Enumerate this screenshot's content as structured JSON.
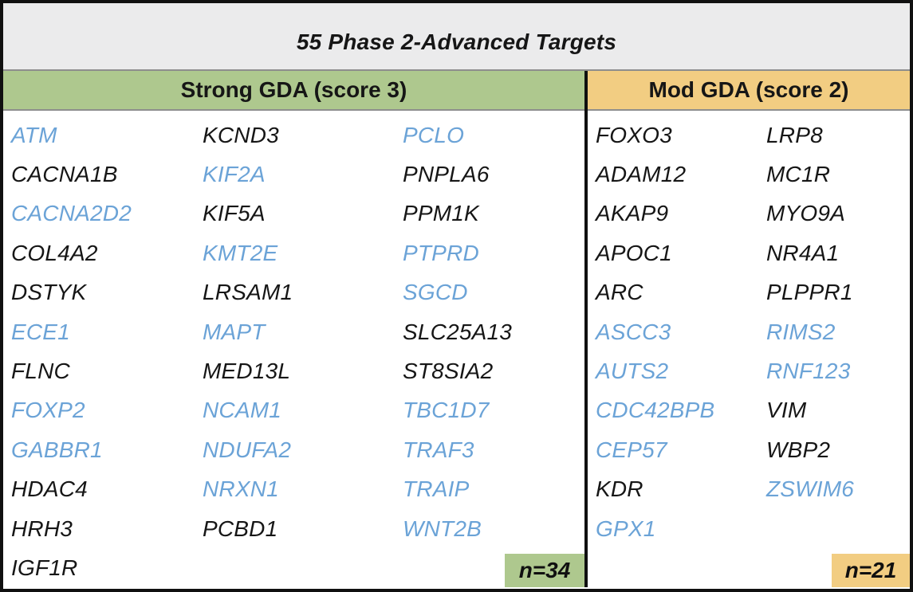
{
  "title": "55 Phase 2-Advanced Targets",
  "colors": {
    "strong_header_bg": "#aec88e",
    "mod_header_bg": "#f2cd82",
    "highlight_gene_blue": "#6ba3d7",
    "plain_gene_black": "#161616",
    "title_bg": "#ebebec",
    "border_black": "#101010"
  },
  "strong_section": {
    "header": "Strong GDA (score 3)",
    "count_label": "n=34",
    "columns": [
      [
        {
          "name": "ATM",
          "blue": true
        },
        {
          "name": "CACNA1B",
          "blue": false
        },
        {
          "name": "CACNA2D2",
          "blue": true
        },
        {
          "name": "COL4A2",
          "blue": false
        },
        {
          "name": "DSTYK",
          "blue": false
        },
        {
          "name": "ECE1",
          "blue": true
        },
        {
          "name": "FLNC",
          "blue": false
        },
        {
          "name": "FOXP2",
          "blue": true
        },
        {
          "name": "GABBR1",
          "blue": true
        },
        {
          "name": "HDAC4",
          "blue": false
        },
        {
          "name": "HRH3",
          "blue": false
        },
        {
          "name": "IGF1R",
          "blue": false
        }
      ],
      [
        {
          "name": "KCND3",
          "blue": false
        },
        {
          "name": "KIF2A",
          "blue": true
        },
        {
          "name": "KIF5A",
          "blue": false
        },
        {
          "name": "KMT2E",
          "blue": true
        },
        {
          "name": "LRSAM1",
          "blue": false
        },
        {
          "name": "MAPT",
          "blue": true
        },
        {
          "name": "MED13L",
          "blue": false
        },
        {
          "name": "NCAM1",
          "blue": true
        },
        {
          "name": "NDUFA2",
          "blue": true
        },
        {
          "name": "NRXN1",
          "blue": true
        },
        {
          "name": "PCBD1",
          "blue": false
        }
      ],
      [
        {
          "name": "PCLO",
          "blue": true
        },
        {
          "name": "PNPLA6",
          "blue": false
        },
        {
          "name": "PPM1K",
          "blue": false
        },
        {
          "name": "PTPRD",
          "blue": true
        },
        {
          "name": "SGCD",
          "blue": true
        },
        {
          "name": "SLC25A13",
          "blue": false
        },
        {
          "name": "ST8SIA2",
          "blue": false
        },
        {
          "name": "TBC1D7",
          "blue": true
        },
        {
          "name": "TRAF3",
          "blue": true
        },
        {
          "name": "TRAIP",
          "blue": true
        },
        {
          "name": "WNT2B",
          "blue": true
        }
      ]
    ]
  },
  "mod_section": {
    "header": "Mod GDA (score 2)",
    "count_label": "n=21",
    "columns": [
      [
        {
          "name": "FOXO3",
          "blue": false
        },
        {
          "name": "ADAM12",
          "blue": false
        },
        {
          "name": "AKAP9",
          "blue": false
        },
        {
          "name": "APOC1",
          "blue": false
        },
        {
          "name": "ARC",
          "blue": false
        },
        {
          "name": "ASCC3",
          "blue": true
        },
        {
          "name": "AUTS2",
          "blue": true
        },
        {
          "name": "CDC42BPB",
          "blue": true
        },
        {
          "name": "CEP57",
          "blue": true
        },
        {
          "name": "KDR",
          "blue": false
        },
        {
          "name": "GPX1",
          "blue": true
        }
      ],
      [
        {
          "name": "LRP8",
          "blue": false
        },
        {
          "name": "MC1R",
          "blue": false
        },
        {
          "name": "MYO9A",
          "blue": false
        },
        {
          "name": "NR4A1",
          "blue": false
        },
        {
          "name": "PLPPR1",
          "blue": false
        },
        {
          "name": "RIMS2",
          "blue": true
        },
        {
          "name": "RNF123",
          "blue": true
        },
        {
          "name": "VIM",
          "blue": false
        },
        {
          "name": "WBP2",
          "blue": false
        },
        {
          "name": "ZSWIM6",
          "blue": true
        }
      ]
    ]
  }
}
